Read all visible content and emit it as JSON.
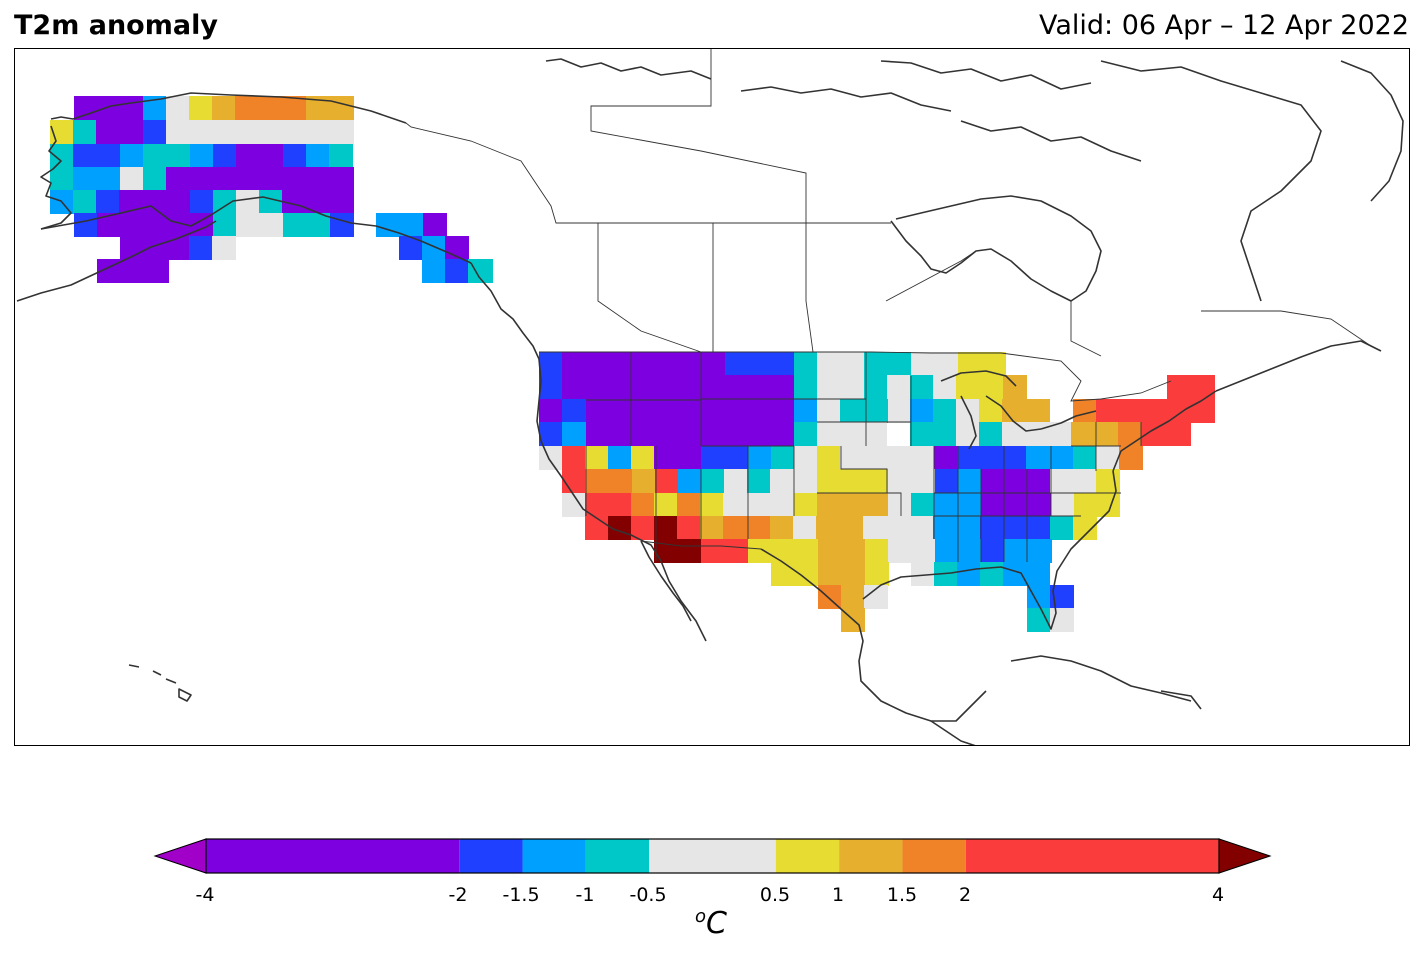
{
  "header": {
    "title": "T2m anomaly",
    "valid": "Valid: 06 Apr – 12 Apr 2022"
  },
  "colorbar": {
    "unit_prefix": "o",
    "unit": "C",
    "ticks": [
      "-4",
      "-2",
      "-1.5",
      "-1",
      "-0.5",
      "0.5",
      "1",
      "1.5",
      "2",
      "4"
    ],
    "bins": [
      {
        "min": -4,
        "max": -2,
        "color": "#7d00e0"
      },
      {
        "min": -2,
        "max": -1.5,
        "color": "#2040ff"
      },
      {
        "min": -1.5,
        "max": -1,
        "color": "#00a0ff"
      },
      {
        "min": -1,
        "max": -0.5,
        "color": "#00c8c8"
      },
      {
        "min": -0.5,
        "max": 0.5,
        "color": "#e6e6e6"
      },
      {
        "min": 0.5,
        "max": 1,
        "color": "#e6dc32"
      },
      {
        "min": 1,
        "max": 1.5,
        "color": "#e6af2d"
      },
      {
        "min": 1.5,
        "max": 2,
        "color": "#f08228"
      },
      {
        "min": 2,
        "max": 4,
        "color": "#fa3c3c"
      }
    ],
    "under_color": "#a000c8",
    "over_color": "#820000"
  },
  "map": {
    "region": "North America",
    "coastline_color": "#333333"
  }
}
